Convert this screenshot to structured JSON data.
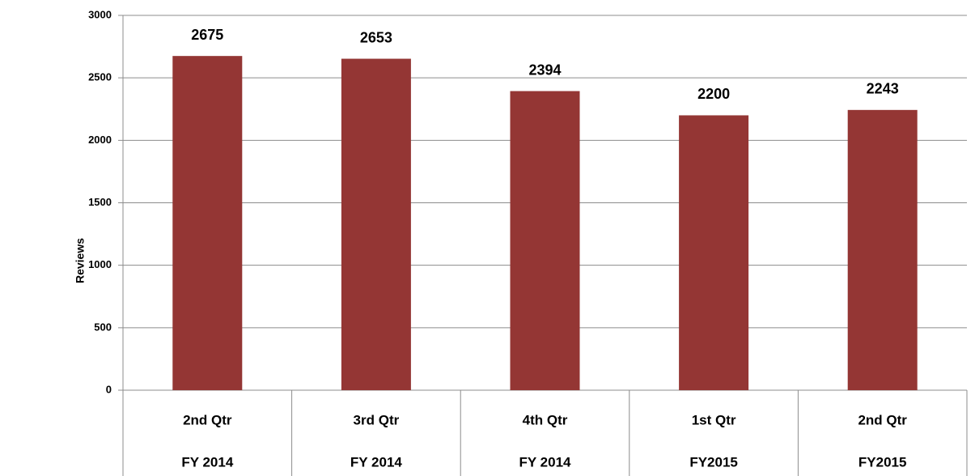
{
  "chart_data": {
    "type": "bar",
    "y_label": "Reviews",
    "categories": [
      [
        "2nd Qtr",
        "FY 2014"
      ],
      [
        "3rd Qtr",
        "FY 2014"
      ],
      [
        "4th Qtr",
        "FY 2014"
      ],
      [
        "1st Qtr",
        "FY2015"
      ],
      [
        "2nd Qtr",
        "FY2015"
      ]
    ],
    "values": [
      2675,
      2653,
      2394,
      2200,
      2243
    ],
    "color": "#943634",
    "ylim": [
      0,
      3000
    ],
    "yticks": [
      0,
      500,
      1000,
      1500,
      2000,
      2500,
      3000
    ],
    "grid": true,
    "data_labels": true
  }
}
